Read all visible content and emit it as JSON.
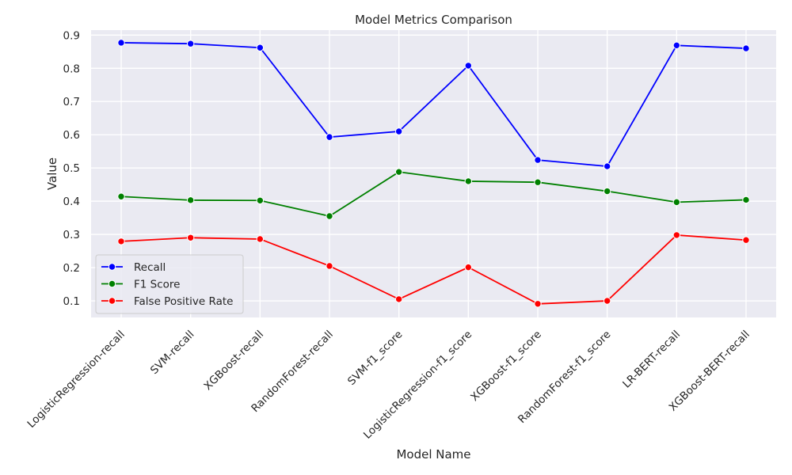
{
  "chart_data": {
    "type": "line",
    "title": "Model Metrics Comparison",
    "xlabel": "Model Name",
    "ylabel": "Value",
    "categories": [
      "LogisticRegression-recall",
      "SVM-recall",
      "XGBoost-recall",
      "RandomForest-recall",
      "SVM-f1_score",
      "LogisticRegression-f1_score",
      "XGBoost-f1_score",
      "RandomForest-f1_score",
      "LR-BERT-recall",
      "XGBoost-BERT-recall"
    ],
    "yticks": [
      "0.1",
      "0.2",
      "0.3",
      "0.4",
      "0.5",
      "0.6",
      "0.7",
      "0.8",
      "0.9"
    ],
    "ylim": [
      0.05,
      0.915
    ],
    "grid": true,
    "legend_position": "lower-left",
    "background_color": "#eaeaf2",
    "series": [
      {
        "name": "Recall",
        "color": "#0000ff",
        "values": [
          0.877,
          0.874,
          0.862,
          0.593,
          0.61,
          0.808,
          0.524,
          0.505,
          0.869,
          0.86
        ]
      },
      {
        "name": "F1 Score",
        "color": "#008000",
        "values": [
          0.414,
          0.403,
          0.402,
          0.355,
          0.488,
          0.46,
          0.457,
          0.43,
          0.397,
          0.404
        ]
      },
      {
        "name": "False Positive Rate",
        "color": "#ff0000",
        "values": [
          0.279,
          0.29,
          0.286,
          0.205,
          0.105,
          0.201,
          0.091,
          0.1,
          0.298,
          0.283
        ]
      }
    ]
  }
}
